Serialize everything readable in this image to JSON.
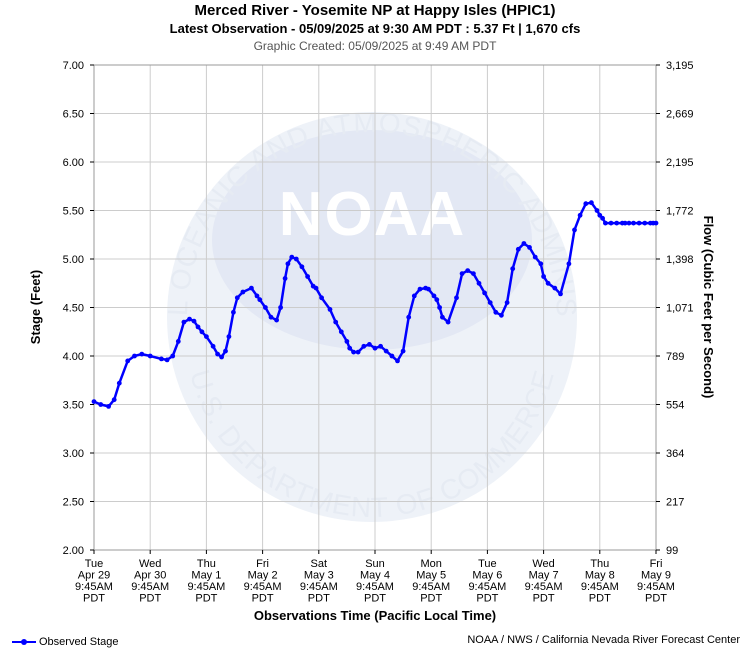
{
  "header": {
    "title": "Merced River - Yosemite NP at Happy Isles (HPIC1)",
    "subtitle": "Latest Observation - 05/09/2025 at 9:30 AM PDT : 5.37 Ft | 1,670 cfs",
    "created": "Graphic Created: 05/09/2025 at 9:49 AM PDT"
  },
  "footer": {
    "legend_label": "Observed Stage",
    "credit": "NOAA / NWS / California Nevada River Forecast Center"
  },
  "watermark": {
    "wordmark": "NOAA",
    "ring_text": "NATIONAL OCEANIC AND ATMOSPHERIC ADMINISTRATION",
    "ring_text_bottom": "U.S. DEPARTMENT OF COMMERCE"
  },
  "colors": {
    "series": "#0000ff",
    "grid": "#cccccc",
    "watermark": "#e6ebf3"
  },
  "chart_data": {
    "type": "line",
    "title": "Merced River - Yosemite NP at Happy Isles (HPIC1)",
    "xlabel": "Observations Time (Pacific Local Time)",
    "ylabel": "Stage (Feet)",
    "y2label": "Flow (Cubic Feet per Second)",
    "ylim": [
      2.0,
      7.0
    ],
    "xlim": [
      0,
      10
    ],
    "grid": true,
    "legend_position": "bottom-left",
    "y_ticks": [
      "2.00",
      "2.50",
      "3.00",
      "3.50",
      "4.00",
      "4.50",
      "5.00",
      "5.50",
      "6.00",
      "6.50",
      "7.00"
    ],
    "y2_ticks": [
      "99",
      "217",
      "364",
      "554",
      "789",
      "1,071",
      "1,398",
      "1,772",
      "2,195",
      "2,669",
      "3,195"
    ],
    "x_ticks": [
      [
        "Tue",
        "Apr 29",
        "9:45AM",
        "PDT"
      ],
      [
        "Wed",
        "Apr 30",
        "9:45AM",
        "PDT"
      ],
      [
        "Thu",
        "May 1",
        "9:45AM",
        "PDT"
      ],
      [
        "Fri",
        "May 2",
        "9:45AM",
        "PDT"
      ],
      [
        "Sat",
        "May 3",
        "9:45AM",
        "PDT"
      ],
      [
        "Sun",
        "May 4",
        "9:45AM",
        "PDT"
      ],
      [
        "Mon",
        "May 5",
        "9:45AM",
        "PDT"
      ],
      [
        "Tue",
        "May 6",
        "9:45AM",
        "PDT"
      ],
      [
        "Wed",
        "May 7",
        "9:45AM",
        "PDT"
      ],
      [
        "Thu",
        "May 8",
        "9:45AM",
        "PDT"
      ],
      [
        "Fri",
        "May 9",
        "9:45AM",
        "PDT"
      ]
    ],
    "series": [
      {
        "name": "Observed Stage",
        "x": [
          0.0,
          0.12,
          0.26,
          0.36,
          0.45,
          0.6,
          0.72,
          0.85,
          1.0,
          1.2,
          1.3,
          1.4,
          1.5,
          1.6,
          1.7,
          1.78,
          1.85,
          1.92,
          2.0,
          2.12,
          2.2,
          2.27,
          2.34,
          2.4,
          2.48,
          2.55,
          2.65,
          2.8,
          2.9,
          2.95,
          3.05,
          3.15,
          3.25,
          3.32,
          3.4,
          3.45,
          3.52,
          3.6,
          3.7,
          3.8,
          3.9,
          3.95,
          4.05,
          4.2,
          4.3,
          4.4,
          4.5,
          4.55,
          4.62,
          4.7,
          4.8,
          4.9,
          5.0,
          5.1,
          5.2,
          5.3,
          5.4,
          5.5,
          5.6,
          5.7,
          5.8,
          5.9,
          5.95,
          6.05,
          6.1,
          6.15,
          6.2,
          6.3,
          6.45,
          6.55,
          6.65,
          6.75,
          6.85,
          6.95,
          7.05,
          7.15,
          7.25,
          7.35,
          7.45,
          7.55,
          7.65,
          7.75,
          7.85,
          7.95,
          8.0,
          8.08,
          8.2,
          8.3,
          8.45,
          8.55,
          8.65,
          8.75,
          8.85,
          8.95,
          9.0,
          9.05,
          9.1,
          9.2,
          9.3,
          9.4,
          9.45,
          9.52,
          9.6,
          9.7,
          9.8,
          9.9,
          9.95,
          10.0
        ],
        "y": [
          3.53,
          3.5,
          3.48,
          3.55,
          3.72,
          3.95,
          4.0,
          4.02,
          4.0,
          3.97,
          3.96,
          4.0,
          4.15,
          4.35,
          4.38,
          4.36,
          4.3,
          4.25,
          4.2,
          4.1,
          4.02,
          3.99,
          4.05,
          4.2,
          4.45,
          4.6,
          4.66,
          4.7,
          4.62,
          4.58,
          4.5,
          4.4,
          4.37,
          4.5,
          4.8,
          4.95,
          5.02,
          5.0,
          4.92,
          4.82,
          4.72,
          4.7,
          4.6,
          4.48,
          4.35,
          4.25,
          4.15,
          4.08,
          4.04,
          4.04,
          4.1,
          4.12,
          4.08,
          4.1,
          4.05,
          4.0,
          3.95,
          4.05,
          4.4,
          4.62,
          4.69,
          4.7,
          4.69,
          4.62,
          4.58,
          4.5,
          4.4,
          4.35,
          4.6,
          4.85,
          4.88,
          4.85,
          4.75,
          4.65,
          4.55,
          4.45,
          4.42,
          4.55,
          4.9,
          5.1,
          5.16,
          5.12,
          5.02,
          4.95,
          4.82,
          4.75,
          4.7,
          4.64,
          4.95,
          5.3,
          5.45,
          5.57,
          5.58,
          5.5,
          5.45,
          5.42,
          5.37,
          5.37,
          5.37,
          5.37,
          5.37,
          5.37,
          5.37,
          5.37,
          5.37,
          5.37,
          5.37,
          5.37
        ]
      }
    ]
  }
}
